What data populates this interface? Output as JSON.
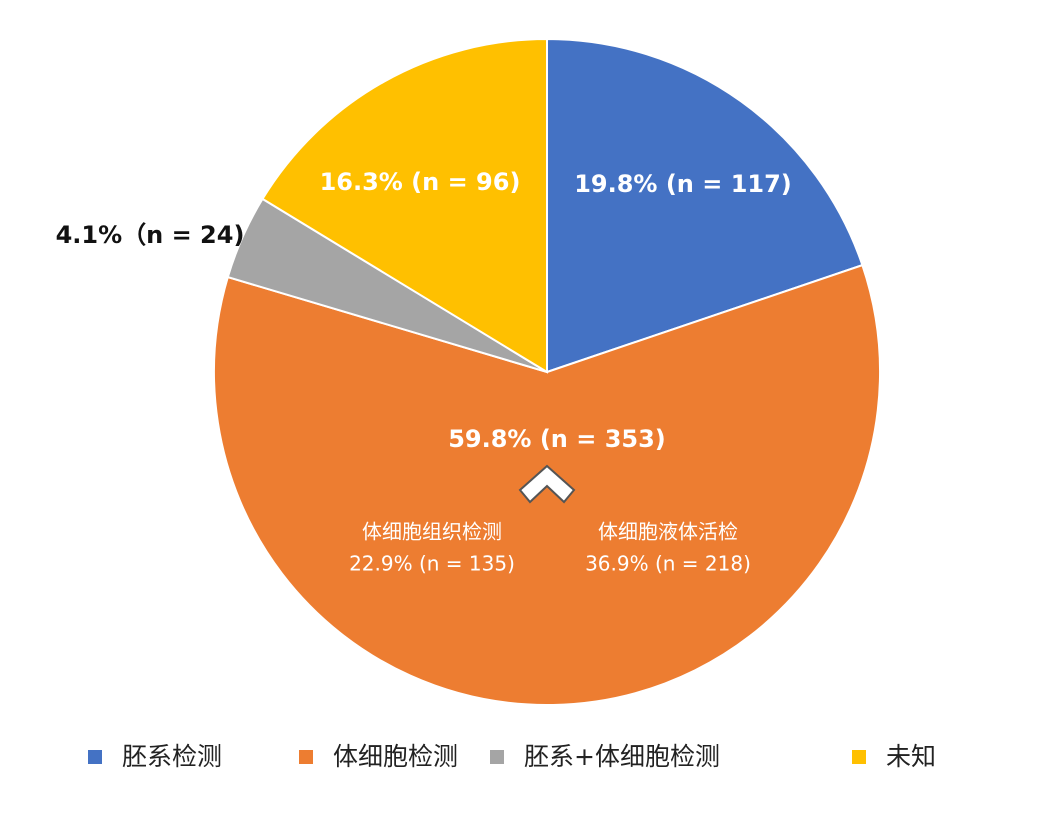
{
  "chart_data": {
    "type": "pie",
    "categories": [
      "胚系检测",
      "体细胞检测",
      "胚系+体细胞检测",
      "未知"
    ],
    "values": [
      19.8,
      59.8,
      4.1,
      16.3
    ],
    "value_labels": [
      "19.8% (n = 117)",
      "59.8% (n = 353)",
      "4.1%（n = 24)",
      "16.3% (n = 96)"
    ],
    "colors": [
      "#4472c4",
      "#ed7d31",
      "#a5a5a5",
      "#ffc000"
    ],
    "annotations": [
      {
        "title": "体细胞组织检测",
        "label": "22.9% (n = 135)"
      },
      {
        "title": "体细胞液体活检",
        "label": "36.9% (n = 218)"
      }
    ]
  }
}
